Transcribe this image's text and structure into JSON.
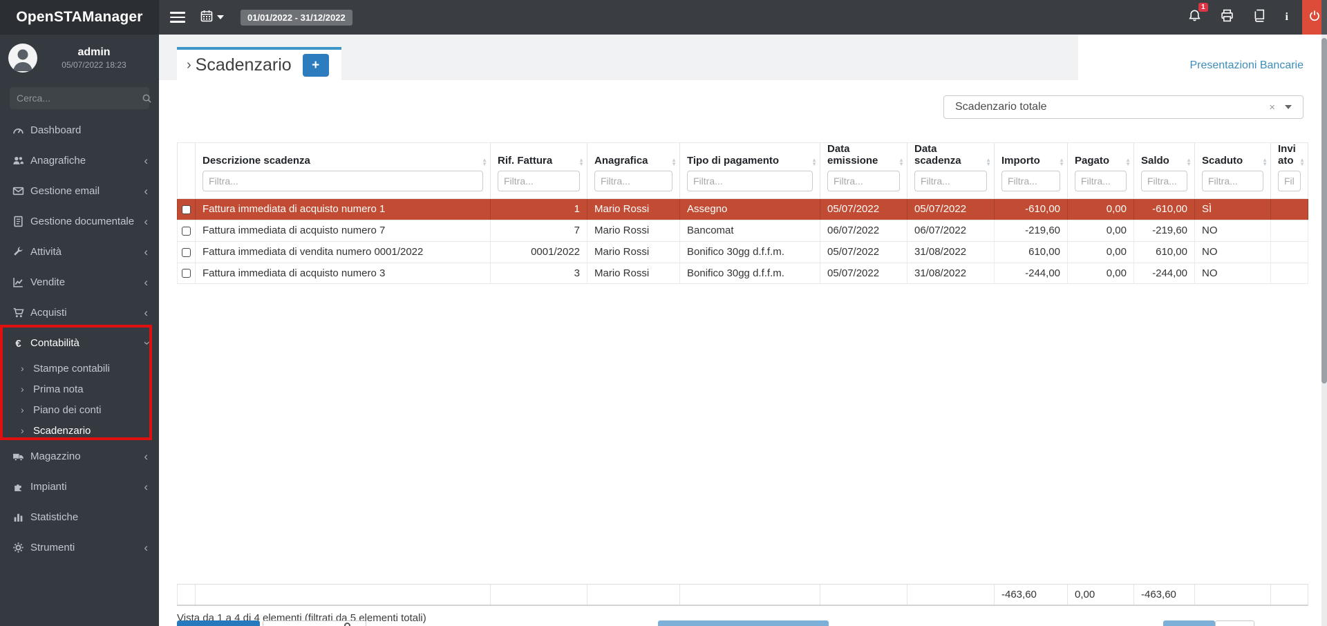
{
  "brand": {
    "title": "OpenSTAManager"
  },
  "user": {
    "name": "admin",
    "datetime": "05/07/2022 18:23"
  },
  "sidebar": {
    "search_placeholder": "Cerca...",
    "items": [
      {
        "label": "Dashboard",
        "icon": "dashboard"
      },
      {
        "label": "Anagrafiche",
        "icon": "users",
        "chevron": "left"
      },
      {
        "label": "Gestione email",
        "icon": "envelope",
        "chevron": "left"
      },
      {
        "label": "Gestione documentale",
        "icon": "document",
        "chevron": "left"
      },
      {
        "label": "Attività",
        "icon": "wrench",
        "chevron": "left"
      },
      {
        "label": "Vendite",
        "icon": "chart-line",
        "chevron": "left"
      },
      {
        "label": "Acquisti",
        "icon": "cart",
        "chevron": "left"
      },
      {
        "label": "Contabilità",
        "icon": "euro",
        "chevron": "down",
        "expanded": true,
        "children": [
          {
            "label": "Stampe contabili"
          },
          {
            "label": "Prima nota"
          },
          {
            "label": "Piano dei conti"
          },
          {
            "label": "Scadenzario",
            "active": true
          }
        ]
      },
      {
        "label": "Magazzino",
        "icon": "truck",
        "chevron": "left"
      },
      {
        "label": "Impianti",
        "icon": "puzzle",
        "chevron": "left"
      },
      {
        "label": "Statistiche",
        "icon": "bar-chart"
      },
      {
        "label": "Strumenti",
        "icon": "gear",
        "chevron": "left"
      }
    ]
  },
  "topbar": {
    "date_range": "01/01/2022 - 31/12/2022",
    "notification_count": "1",
    "icons": [
      "menu-icon",
      "calendar-icon",
      "bell-icon",
      "printer-icon",
      "book-icon",
      "info-icon",
      "power-icon"
    ]
  },
  "page": {
    "title": "Scadenzario",
    "title_chevron": "›",
    "add_button": "+",
    "link": "Presentazioni Bancarie",
    "filter_select": {
      "value": "Scadenzario totale",
      "clear": "×"
    }
  },
  "table": {
    "filter_placeholder": "Filtra...",
    "columns": [
      {
        "id": "sel",
        "label": ""
      },
      {
        "id": "descrizione",
        "label": "Descrizione scadenza"
      },
      {
        "id": "rif",
        "label": "Rif. Fattura"
      },
      {
        "id": "anagrafica",
        "label": "Anagrafica"
      },
      {
        "id": "tipo",
        "label": "Tipo di pagamento"
      },
      {
        "id": "emissione",
        "label": "Data emissione"
      },
      {
        "id": "scadenza",
        "label": "Data scadenza"
      },
      {
        "id": "importo",
        "label": "Importo"
      },
      {
        "id": "pagato",
        "label": "Pagato"
      },
      {
        "id": "saldo",
        "label": "Saldo"
      },
      {
        "id": "scaduto",
        "label": "Scaduto"
      },
      {
        "id": "inviato",
        "label": "Inviato"
      }
    ],
    "rows": [
      {
        "descrizione": "Fattura immediata di acquisto numero 1",
        "rif": "1",
        "anagrafica": "Mario Rossi",
        "tipo": "Assegno",
        "emissione": "05/07/2022",
        "scadenza": "05/07/2022",
        "importo": "-610,00",
        "pagato": "0,00",
        "saldo": "-610,00",
        "scaduto": "SÌ",
        "inviato": "",
        "highlighted": true
      },
      {
        "descrizione": "Fattura immediata di acquisto numero 7",
        "rif": "7",
        "anagrafica": "Mario Rossi",
        "tipo": "Bancomat",
        "emissione": "06/07/2022",
        "scadenza": "06/07/2022",
        "importo": "-219,60",
        "pagato": "0,00",
        "saldo": "-219,60",
        "scaduto": "NO",
        "inviato": "",
        "highlighted": false
      },
      {
        "descrizione": "Fattura immediata di vendita numero 0001/2022",
        "rif": "0001/2022",
        "anagrafica": "Mario Rossi",
        "tipo": "Bonifico 30gg d.f.f.m.",
        "emissione": "05/07/2022",
        "scadenza": "31/08/2022",
        "importo": "610,00",
        "pagato": "0,00",
        "saldo": "610,00",
        "scaduto": "NO",
        "inviato": "",
        "highlighted": false
      },
      {
        "descrizione": "Fattura immediata di acquisto numero 3",
        "rif": "3",
        "anagrafica": "Mario Rossi",
        "tipo": "Bonifico 30gg d.f.f.m.",
        "emissione": "05/07/2022",
        "scadenza": "31/08/2022",
        "importo": "-244,00",
        "pagato": "0,00",
        "saldo": "-244,00",
        "scaduto": "NO",
        "inviato": "",
        "highlighted": false
      }
    ],
    "totals": {
      "importo": "-463,60",
      "pagato": "0,00",
      "saldo": "-463,60"
    },
    "summary": "Vista da 1 a 4 di 4 elementi (filtrati da 5 elementi totali)"
  },
  "colors": {
    "accent_blue": "#3c8dbc",
    "tab_blue": "#3c96c8",
    "danger_row_red": "#c24b33",
    "annotation_red": "#e01010",
    "power_red": "#dd4b39",
    "sidebar_dark": "#343a40"
  }
}
